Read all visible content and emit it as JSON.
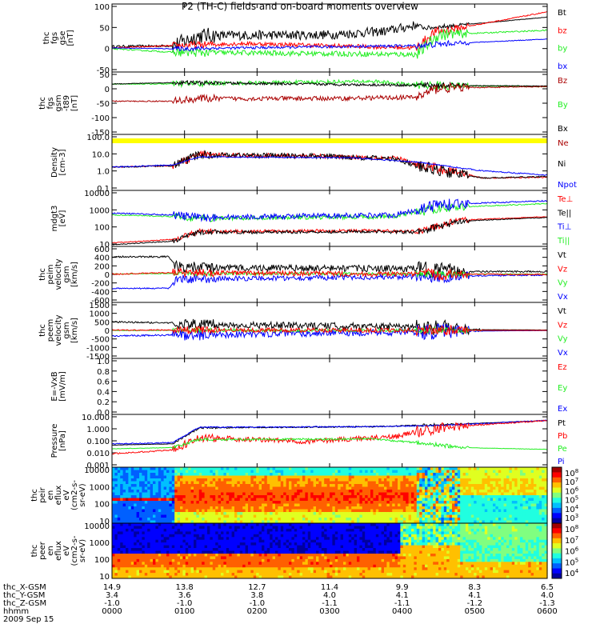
{
  "title": "P2 (TH-C) fields and on-board moments overview",
  "colors": {
    "black": "#000000",
    "red": "#ff0000",
    "green": "#22ee22",
    "blue": "#0000ff",
    "darkred": "#aa0000",
    "yellow": "#ffff00"
  },
  "chart_data": [
    {
      "type": "line",
      "panel": "fgs_gse",
      "ylabel": [
        "thc",
        "fgs",
        "gse",
        "[nT]"
      ],
      "yticks": [
        "100",
        "50",
        "0",
        "-50"
      ],
      "ylim": [
        -55,
        100
      ],
      "legend": [
        {
          "text": "Bt",
          "color": "#000000"
        },
        {
          "text": "bz",
          "color": "#ff0000"
        },
        {
          "text": "by",
          "color": "#22ee22"
        },
        {
          "text": "bx",
          "color": "#0000ff"
        }
      ]
    },
    {
      "type": "line",
      "panel": "fgs_gsm_t89",
      "ylabel": [
        "thc",
        "fgs",
        "gsm",
        "-t89",
        "[nT]"
      ],
      "yticks": [
        "50",
        "0",
        "-50",
        "-100",
        "-150"
      ],
      "ylim": [
        -180,
        55
      ],
      "legend": [
        {
          "text": "Bz",
          "color": "#aa0000"
        },
        {
          "text": "By",
          "color": "#22ee22"
        },
        {
          "text": "Bx",
          "color": "#000000"
        }
      ]
    },
    {
      "type": "line",
      "panel": "density",
      "ylabel": [
        "Density",
        "[cm-3]"
      ],
      "yticks": [
        "100.0",
        "10.0",
        "1.0",
        "0.1"
      ],
      "log": true,
      "legend": [
        {
          "text": "Ne",
          "color": "#aa0000"
        },
        {
          "text": "Ni",
          "color": "#000000"
        },
        {
          "text": "Npot",
          "color": "#0000ff"
        }
      ]
    },
    {
      "type": "line",
      "panel": "temperature",
      "ylabel": [
        "mdgt3",
        "[eV]"
      ],
      "yticks": [
        "10000",
        "1000",
        "100",
        "10"
      ],
      "log": true,
      "legend": [
        {
          "text": "Te⊥",
          "color": "#ff0000"
        },
        {
          "text": "Te||",
          "color": "#000000"
        },
        {
          "text": "Ti⊥",
          "color": "#0000ff"
        },
        {
          "text": "Ti||",
          "color": "#22ee22"
        }
      ]
    },
    {
      "type": "line",
      "panel": "peim_velocity",
      "ylabel": [
        "thc",
        "peim",
        "velocity",
        "gsm",
        "[km/s]"
      ],
      "yticks": [
        "600",
        "400",
        "200",
        "0",
        "-200",
        "-400",
        "-600"
      ],
      "ylim": [
        -600,
        600
      ],
      "legend": [
        {
          "text": "Vt",
          "color": "#000000"
        },
        {
          "text": "Vz",
          "color": "#ff0000"
        },
        {
          "text": "Vy",
          "color": "#22ee22"
        },
        {
          "text": "Vx",
          "color": "#0000ff"
        }
      ]
    },
    {
      "type": "line",
      "panel": "peem_velocity",
      "ylabel": [
        "thc",
        "peem",
        "velocity",
        "gsm",
        "[km/s]"
      ],
      "yticks": [
        "1500",
        "1000",
        "500",
        "0",
        "-500",
        "-1000",
        "-1500"
      ],
      "ylim": [
        -1500,
        1500
      ],
      "legend": [
        {
          "text": "Vt",
          "color": "#000000"
        },
        {
          "text": "Vz",
          "color": "#ff0000"
        },
        {
          "text": "Vy",
          "color": "#22ee22"
        },
        {
          "text": "Vx",
          "color": "#0000ff"
        }
      ]
    },
    {
      "type": "line",
      "panel": "efield",
      "ylabel": [
        "E=-VxB",
        "[mV/m]"
      ],
      "yticks": [
        "1.0",
        "0.8",
        "0.6",
        "0.4",
        "0.2",
        "0.0"
      ],
      "ylim": [
        0,
        1
      ],
      "legend": [
        {
          "text": "Ez",
          "color": "#ff0000"
        },
        {
          "text": "Ey",
          "color": "#22ee22"
        },
        {
          "text": "Ex",
          "color": "#0000ff"
        }
      ]
    },
    {
      "type": "line",
      "panel": "pressure",
      "ylabel": [
        "Pressure",
        "[nPa]"
      ],
      "yticks": [
        "10.000",
        "1.000",
        "0.100",
        "0.010",
        "0.001"
      ],
      "log": true,
      "legend": [
        {
          "text": "Pt",
          "color": "#000000"
        },
        {
          "text": "Pb",
          "color": "#ff0000"
        },
        {
          "text": "Pe",
          "color": "#22ee22"
        },
        {
          "text": "Pi",
          "color": "#0000ff"
        }
      ]
    },
    {
      "type": "heatmap",
      "panel": "peir",
      "ylabel": [
        "thc",
        "peir",
        "en",
        "eflux",
        "eV",
        "(cm2-s-",
        "sr-eV)"
      ],
      "yticks": [
        "10000",
        "1000",
        "100",
        "10"
      ],
      "colorbar": [
        {
          "b": "10",
          "e": "8"
        },
        {
          "b": "10",
          "e": "7"
        },
        {
          "b": "10",
          "e": "6"
        },
        {
          "b": "10",
          "e": "5"
        },
        {
          "b": "10",
          "e": "4"
        },
        {
          "b": "10",
          "e": "3"
        }
      ]
    },
    {
      "type": "heatmap",
      "panel": "peer",
      "ylabel": [
        "thc",
        "peer",
        "en",
        "eflux",
        "eV",
        "(cm2-s-",
        "sr-eV)"
      ],
      "yticks": [
        "10000",
        "1000",
        "100",
        "10"
      ],
      "colorbar": [
        {
          "b": "10",
          "e": "8"
        },
        {
          "b": "10",
          "e": "7"
        },
        {
          "b": "10",
          "e": "6"
        },
        {
          "b": "10",
          "e": "5"
        },
        {
          "b": "10",
          "e": "4"
        }
      ]
    }
  ],
  "xaxis": {
    "rows": [
      {
        "label": "thc_X-GSM",
        "values": [
          "14.9",
          "13.8",
          "12.7",
          "11.4",
          "9.9",
          "8.3",
          "6.5"
        ]
      },
      {
        "label": "thc_Y-GSM",
        "values": [
          "3.4",
          "3.6",
          "3.8",
          "4.0",
          "4.1",
          "4.1",
          "4.0"
        ]
      },
      {
        "label": "thc_Z-GSM",
        "values": [
          "-1.0",
          "-1.0",
          "-1.0",
          "-1.1",
          "-1.1",
          "-1.2",
          "-1.3"
        ]
      },
      {
        "label": "hhmm",
        "values": [
          "0000",
          "0100",
          "0200",
          "0300",
          "0400",
          "0500",
          "0600"
        ]
      }
    ],
    "date": "2009 Sep 15"
  }
}
